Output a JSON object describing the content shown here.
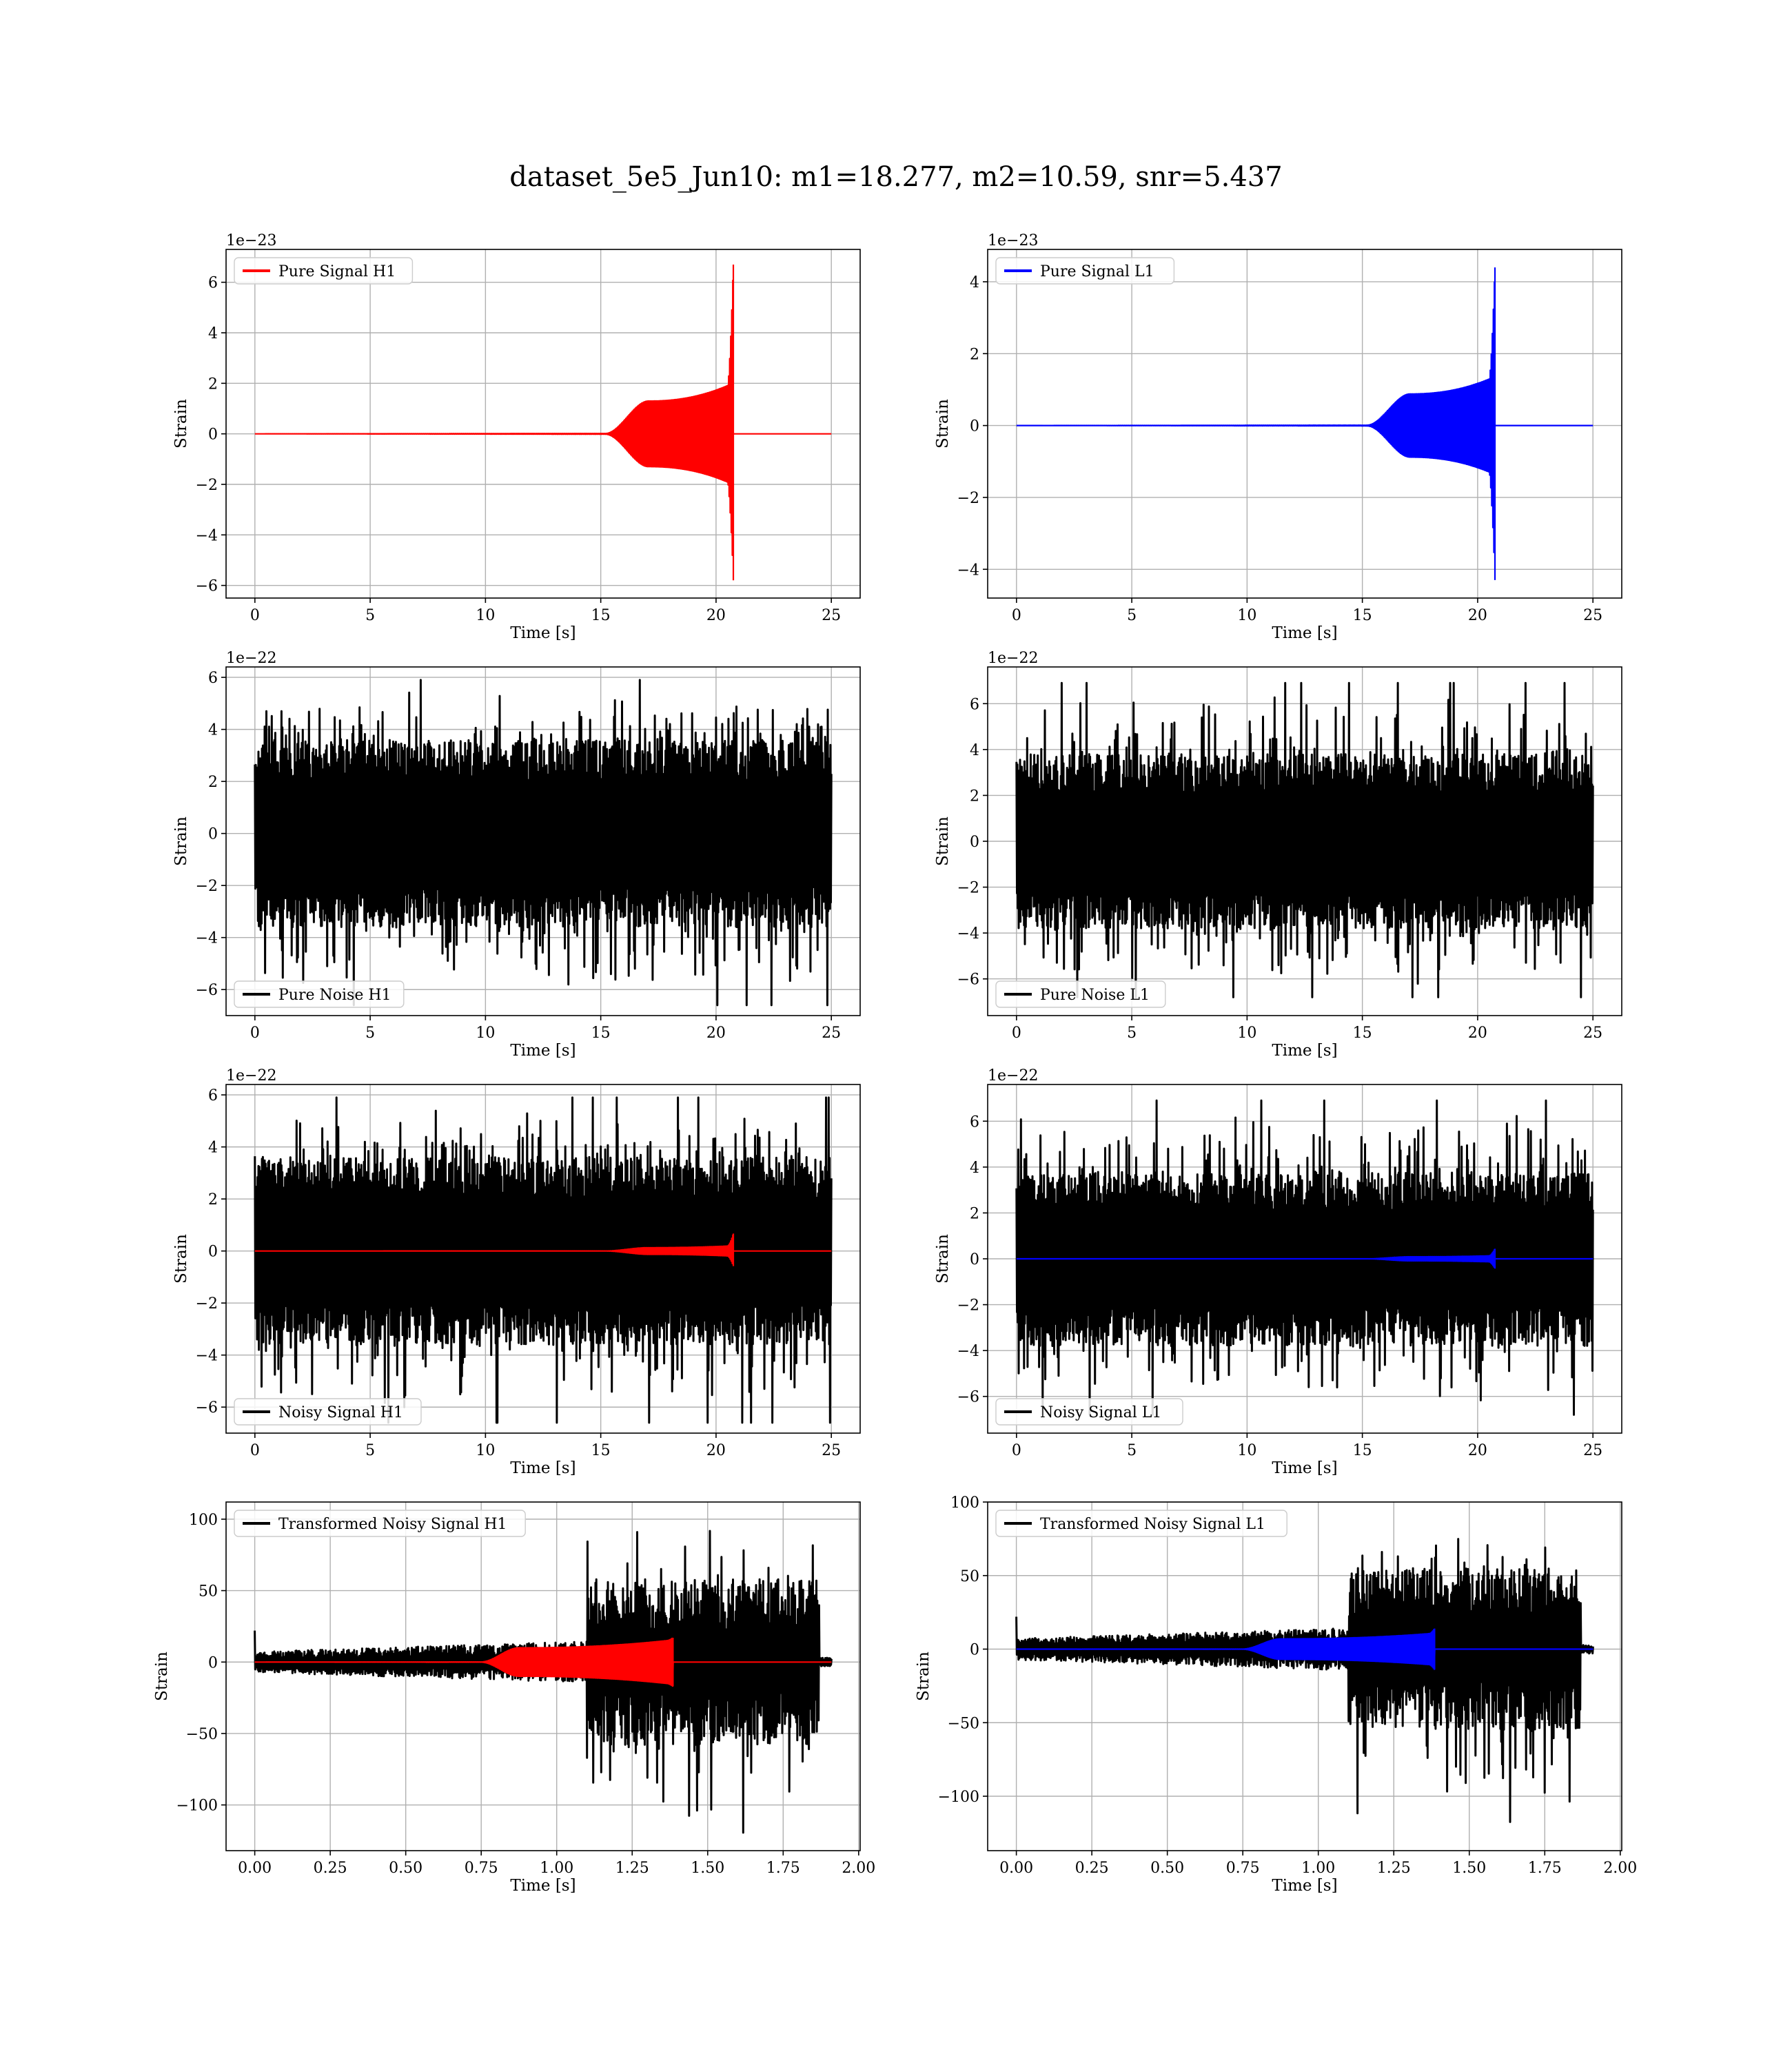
{
  "figure": {
    "title": "dataset_5e5_Jun10: m1=18.277, m2=10.59, snr=5.437"
  },
  "chart_data": [
    {
      "type": "line",
      "id": "h1-pure",
      "scale": "1e−23",
      "xlabel": "Time [s]",
      "ylabel": "Strain",
      "xlim": [
        -1.25,
        26.25
      ],
      "ylim": [
        -6.5,
        7.3
      ],
      "xticks": [
        0,
        5,
        10,
        15,
        20,
        25
      ],
      "xtick_labels": [
        "0",
        "5",
        "10",
        "15",
        "20",
        "25"
      ],
      "yticks": [
        -6,
        -4,
        -2,
        0,
        2,
        4,
        6
      ],
      "ytick_labels": [
        "−6",
        "−4",
        "−2",
        "0",
        "2",
        "4",
        "6"
      ],
      "legend": {
        "loc": "upper-left"
      },
      "grid": true,
      "series": [
        {
          "name": "Pure Signal H1",
          "color": "#ff0000",
          "kind": "chirp",
          "x_start": 0,
          "x_end": 25,
          "merger": 20.75,
          "amp_plateau": 1.3,
          "amp_peak": 6.7,
          "amp_trough": -5.8,
          "onset": 15.2
        }
      ]
    },
    {
      "type": "line",
      "id": "l1-pure",
      "scale": "1e−23",
      "xlabel": "Time [s]",
      "ylabel": "Strain",
      "xlim": [
        -1.25,
        26.25
      ],
      "ylim": [
        -4.8,
        4.9
      ],
      "xticks": [
        0,
        5,
        10,
        15,
        20,
        25
      ],
      "xtick_labels": [
        "0",
        "5",
        "10",
        "15",
        "20",
        "25"
      ],
      "yticks": [
        -4,
        -2,
        0,
        2,
        4
      ],
      "ytick_labels": [
        "−4",
        "−2",
        "0",
        "2",
        "4"
      ],
      "legend": {
        "loc": "upper-left"
      },
      "grid": true,
      "series": [
        {
          "name": "Pure Signal L1",
          "color": "#0000ff",
          "kind": "chirp",
          "x_start": 0,
          "x_end": 25,
          "merger": 20.75,
          "amp_plateau": 0.88,
          "amp_peak": 4.4,
          "amp_trough": -4.3,
          "onset": 15.2
        }
      ]
    },
    {
      "type": "line",
      "id": "h1-noise",
      "scale": "1e−22",
      "xlabel": "Time [s]",
      "ylabel": "Strain",
      "xlim": [
        -1.25,
        26.25
      ],
      "ylim": [
        -7.0,
        6.4
      ],
      "xticks": [
        0,
        5,
        10,
        15,
        20,
        25
      ],
      "xtick_labels": [
        "0",
        "5",
        "10",
        "15",
        "20",
        "25"
      ],
      "yticks": [
        -6,
        -4,
        -2,
        0,
        2,
        4,
        6
      ],
      "ytick_labels": [
        "−6",
        "−4",
        "−2",
        "0",
        "2",
        "4",
        "6"
      ],
      "legend": {
        "loc": "lower-left"
      },
      "grid": true,
      "series": [
        {
          "name": "Pure Noise H1",
          "color": "#000000",
          "kind": "noise",
          "x_start": 0,
          "x_end": 25,
          "max": 5.9,
          "min": -6.6,
          "band": 3.6
        }
      ]
    },
    {
      "type": "line",
      "id": "l1-noise",
      "scale": "1e−22",
      "xlabel": "Time [s]",
      "ylabel": "Strain",
      "xlim": [
        -1.25,
        26.25
      ],
      "ylim": [
        -7.6,
        7.6
      ],
      "xticks": [
        0,
        5,
        10,
        15,
        20,
        25
      ],
      "xtick_labels": [
        "0",
        "5",
        "10",
        "15",
        "20",
        "25"
      ],
      "yticks": [
        -6,
        -4,
        -2,
        0,
        2,
        4,
        6
      ],
      "ytick_labels": [
        "−6",
        "−4",
        "−2",
        "0",
        "2",
        "4",
        "6"
      ],
      "legend": {
        "loc": "lower-left"
      },
      "grid": true,
      "series": [
        {
          "name": "Pure Noise L1",
          "color": "#000000",
          "kind": "noise",
          "x_start": 0,
          "x_end": 25,
          "max": 6.9,
          "min": -6.8,
          "band": 3.8
        }
      ]
    },
    {
      "type": "line",
      "id": "h1-noisy",
      "scale": "1e−22",
      "xlabel": "Time [s]",
      "ylabel": "Strain",
      "xlim": [
        -1.25,
        26.25
      ],
      "ylim": [
        -7.0,
        6.4
      ],
      "xticks": [
        0,
        5,
        10,
        15,
        20,
        25
      ],
      "xtick_labels": [
        "0",
        "5",
        "10",
        "15",
        "20",
        "25"
      ],
      "yticks": [
        -6,
        -4,
        -2,
        0,
        2,
        4,
        6
      ],
      "ytick_labels": [
        "−6",
        "−4",
        "−2",
        "0",
        "2",
        "4",
        "6"
      ],
      "legend": {
        "loc": "lower-left"
      },
      "grid": true,
      "series": [
        {
          "name": "Noisy Signal H1",
          "color": "#000000",
          "kind": "noise",
          "x_start": 0,
          "x_end": 25,
          "max": 5.9,
          "min": -6.6,
          "band": 3.6
        },
        {
          "name": "",
          "color": "#ff0000",
          "kind": "chirp",
          "x_start": 0,
          "x_end": 25,
          "merger": 20.75,
          "amp_plateau": 0.13,
          "amp_peak": 0.67,
          "amp_trough": -0.58,
          "onset": 15.2
        }
      ]
    },
    {
      "type": "line",
      "id": "l1-noisy",
      "scale": "1e−22",
      "xlabel": "Time [s]",
      "ylabel": "Strain",
      "xlim": [
        -1.25,
        26.25
      ],
      "ylim": [
        -7.6,
        7.6
      ],
      "xticks": [
        0,
        5,
        10,
        15,
        20,
        25
      ],
      "xtick_labels": [
        "0",
        "5",
        "10",
        "15",
        "20",
        "25"
      ],
      "yticks": [
        -6,
        -4,
        -2,
        0,
        2,
        4,
        6
      ],
      "ytick_labels": [
        "−6",
        "−4",
        "−2",
        "0",
        "2",
        "4",
        "6"
      ],
      "legend": {
        "loc": "lower-left"
      },
      "grid": true,
      "series": [
        {
          "name": "Noisy Signal L1",
          "color": "#000000",
          "kind": "noise",
          "x_start": 0,
          "x_end": 25,
          "max": 6.9,
          "min": -6.8,
          "band": 3.8
        },
        {
          "name": "",
          "color": "#0000ff",
          "kind": "chirp",
          "x_start": 0,
          "x_end": 25,
          "merger": 20.75,
          "amp_plateau": 0.09,
          "amp_peak": 0.44,
          "amp_trough": -0.43,
          "onset": 15.2
        }
      ]
    },
    {
      "type": "line",
      "id": "h1-transformed",
      "scale": "",
      "xlabel": "Time [s]",
      "ylabel": "Strain",
      "xlim": [
        -0.095,
        2.005
      ],
      "ylim": [
        -132,
        112
      ],
      "xticks": [
        0,
        0.25,
        0.5,
        0.75,
        1.0,
        1.25,
        1.5,
        1.75,
        2.0
      ],
      "xtick_labels": [
        "0.00",
        "0.25",
        "0.50",
        "0.75",
        "1.00",
        "1.25",
        "1.50",
        "1.75",
        "2.00"
      ],
      "yticks": [
        -100,
        -50,
        0,
        50,
        100
      ],
      "ytick_labels": [
        "−100",
        "−50",
        "0",
        "50",
        "100"
      ],
      "legend": {
        "loc": "upper-left"
      },
      "grid": true,
      "series": [
        {
          "name": "Transformed Noisy Signal H1",
          "color": "#000000",
          "kind": "whitened",
          "x_start": 0,
          "x_end": 1.91,
          "jump": 1.1,
          "low": 12,
          "high": 58,
          "max": 100,
          "min": -121,
          "end_taper": 1.87
        },
        {
          "name": "",
          "color": "#ff0000",
          "kind": "chirp",
          "x_start": 0,
          "x_end": 1.91,
          "merger": 1.385,
          "amp_plateau": 10,
          "amp_peak": 17,
          "amp_trough": -17,
          "onset": 0.75
        }
      ]
    },
    {
      "type": "line",
      "id": "l1-transformed",
      "scale": "",
      "xlabel": "Time [s]",
      "ylabel": "Strain",
      "xlim": [
        -0.095,
        2.005
      ],
      "ylim": [
        -137,
        100
      ],
      "xticks": [
        0,
        0.25,
        0.5,
        0.75,
        1.0,
        1.25,
        1.5,
        1.75,
        2.0
      ],
      "xtick_labels": [
        "0.00",
        "0.25",
        "0.50",
        "0.75",
        "1.00",
        "1.25",
        "1.50",
        "1.75",
        "2.00"
      ],
      "yticks": [
        -100,
        -50,
        0,
        50,
        100
      ],
      "ytick_labels": [
        "−100",
        "−50",
        "0",
        "50",
        "100"
      ],
      "legend": {
        "loc": "upper-left"
      },
      "grid": true,
      "series": [
        {
          "name": "Transformed Noisy Signal L1",
          "color": "#000000",
          "kind": "whitened",
          "x_start": 0,
          "x_end": 1.91,
          "jump": 1.1,
          "low": 12,
          "high": 55,
          "max": 85,
          "min": -126,
          "end_taper": 1.87
        },
        {
          "name": "",
          "color": "#0000ff",
          "kind": "chirp",
          "x_start": 0,
          "x_end": 1.91,
          "merger": 1.385,
          "amp_plateau": 7,
          "amp_peak": 14,
          "amp_trough": -14,
          "onset": 0.75
        }
      ]
    }
  ]
}
